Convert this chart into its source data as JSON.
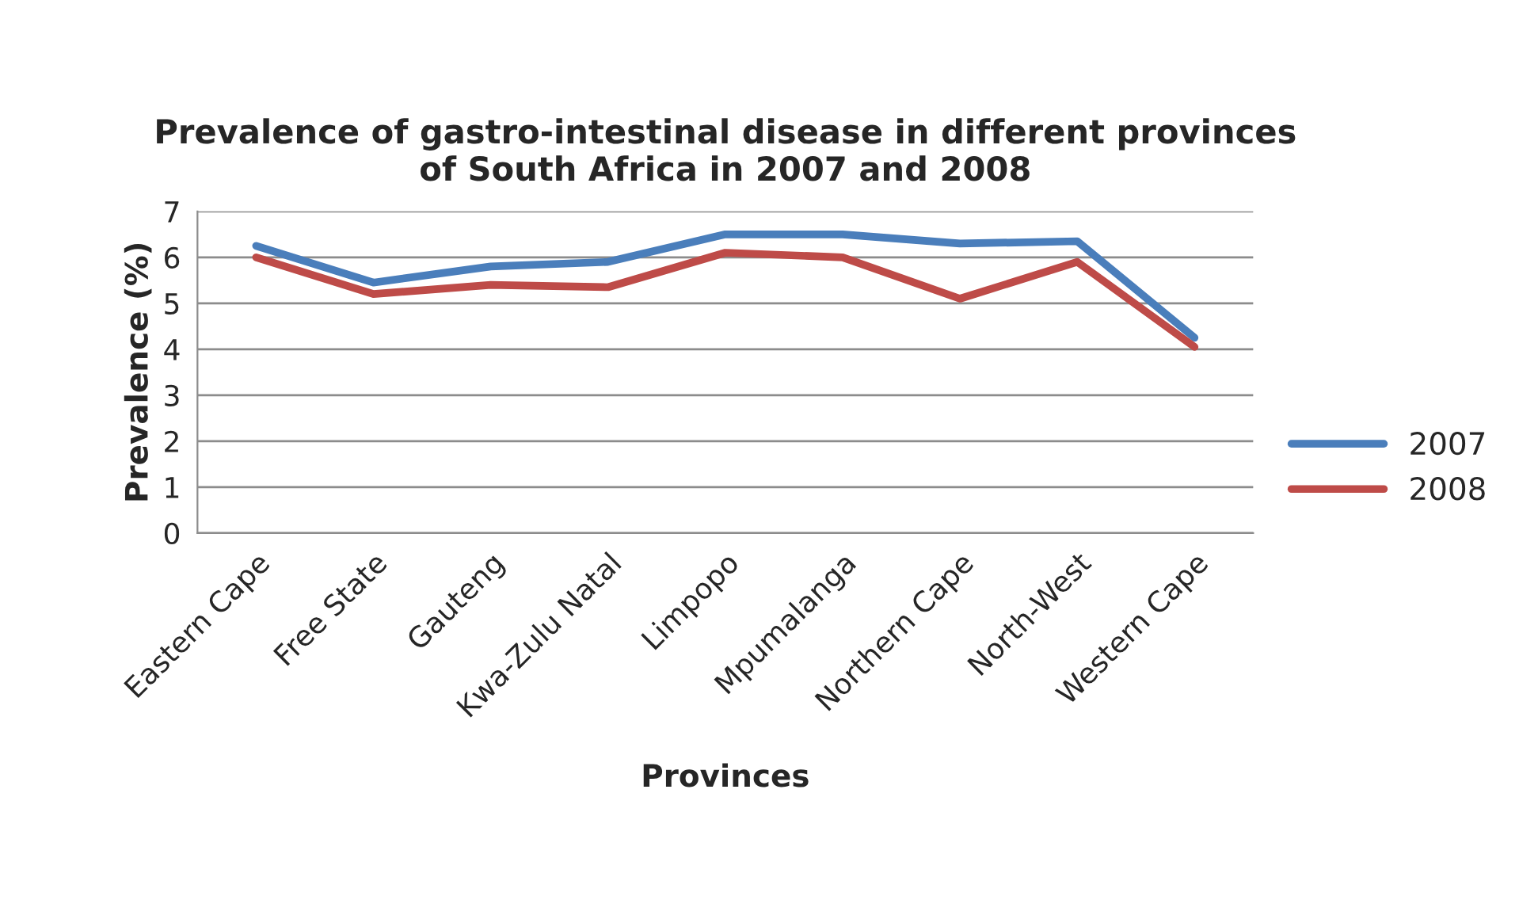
{
  "chart_data": {
    "type": "line",
    "title": "Prevalence of gastro-intestinal disease in different provinces\nof South Africa in 2007 and 2008",
    "xlabel": "Provinces",
    "ylabel": "Prevalence (%)",
    "categories": [
      "Eastern Cape",
      "Free State",
      "Gauteng",
      "Kwa-Zulu Natal",
      "Limpopo",
      "Mpumalanga",
      "Northern Cape",
      "North-West",
      "Western Cape"
    ],
    "series": [
      {
        "name": "2007",
        "color": "#4a7ebb",
        "values": [
          6.25,
          5.45,
          5.8,
          5.9,
          6.5,
          6.5,
          6.3,
          6.35,
          4.25
        ]
      },
      {
        "name": "2008",
        "color": "#be4b48",
        "values": [
          6.0,
          5.2,
          5.4,
          5.35,
          6.1,
          6.0,
          5.1,
          5.9,
          4.05
        ]
      }
    ],
    "ylim": [
      0,
      7
    ],
    "yticks": [
      0,
      1,
      2,
      3,
      4,
      5,
      6,
      7
    ],
    "grid": "y",
    "legend": "right",
    "marker": "none",
    "line_style": "solid"
  }
}
